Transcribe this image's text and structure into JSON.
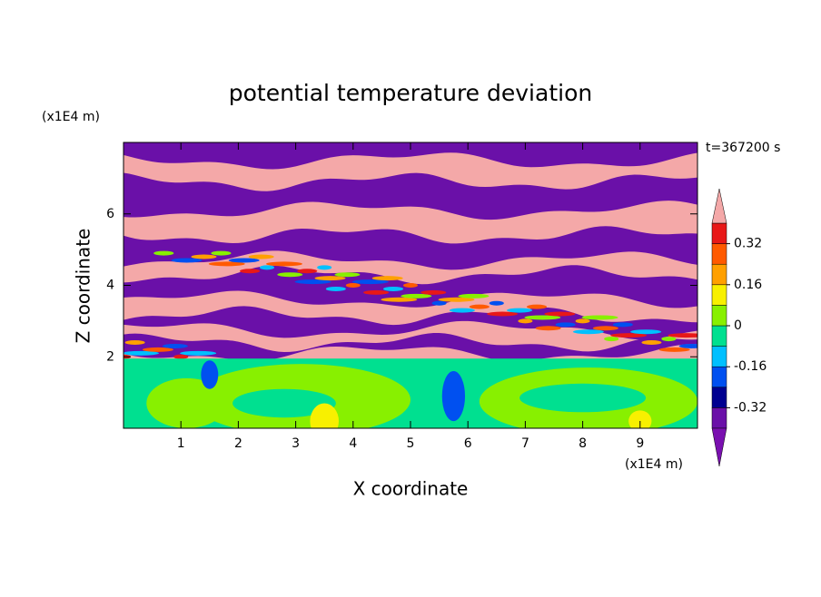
{
  "chart_data": {
    "type": "contour",
    "title": "potential temperature deviation",
    "x_label": "X coordinate",
    "y_label": "Z coordinate",
    "x_unit": "(x1E4 m)",
    "y_unit": "(x1E4 m)",
    "time_label": "t=367200 s",
    "xlim": [
      0,
      10
    ],
    "xticks": [
      1,
      2,
      3,
      4,
      5,
      6,
      7,
      8,
      9
    ],
    "ylim": [
      0,
      8
    ],
    "yticks": [
      2,
      4,
      6
    ],
    "colorbar": {
      "levels": [
        -0.4,
        -0.32,
        -0.24,
        -0.16,
        -0.08,
        0,
        0.08,
        0.16,
        0.24,
        0.32,
        0.4
      ],
      "colors": [
        "#7a10b0",
        "#6a10a8",
        "#000090",
        "#0050f0",
        "#00c0ff",
        "#00e090",
        "#88f000",
        "#f8f000",
        "#ffa000",
        "#ff5a00",
        "#e81818",
        "#f4a8a8"
      ],
      "ticks": [
        -0.32,
        -0.16,
        0,
        0.16,
        0.32
      ]
    }
  }
}
